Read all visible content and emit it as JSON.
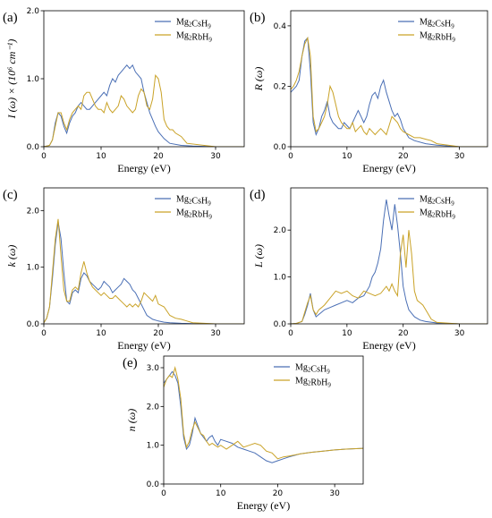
{
  "colors": {
    "cs": "#4a6fb5",
    "rb": "#c9a227"
  },
  "chart_data": [
    {
      "panel": "(a)",
      "type": "line",
      "xlabel": "Energy (eV)",
      "ylabel_html": "I (ω) × (10⁶ cm⁻¹)",
      "ylabel": "I (ω) × (10^6 cm^-1)",
      "xlim": [
        0,
        35
      ],
      "ylim": [
        0,
        2.0
      ],
      "xticks": [
        0,
        10,
        20,
        30
      ],
      "yticks": [
        0,
        1.0,
        2.0
      ],
      "ytick_labels": [
        "0.0",
        "1.0",
        "2.0"
      ],
      "legend": [
        "Mg2CsH9",
        "Mg2RbH9"
      ],
      "legend_position": "top-right",
      "series": [
        {
          "name": "Mg2CsH9",
          "x": [
            0,
            1,
            1.5,
            2,
            2.5,
            3,
            3.5,
            4,
            4.5,
            5,
            5.5,
            6,
            6.5,
            7,
            7.5,
            8,
            8.5,
            9,
            9.5,
            10,
            10.5,
            11,
            11.5,
            12,
            12.5,
            13,
            13.5,
            14,
            14.5,
            15,
            15.5,
            16,
            16.5,
            17,
            17.5,
            18,
            18.5,
            19,
            19.5,
            20,
            21,
            22,
            24,
            26,
            30,
            35
          ],
          "y": [
            0,
            0.02,
            0.1,
            0.35,
            0.5,
            0.45,
            0.3,
            0.2,
            0.35,
            0.45,
            0.5,
            0.6,
            0.65,
            0.6,
            0.55,
            0.55,
            0.6,
            0.65,
            0.7,
            0.75,
            0.8,
            0.75,
            0.9,
            1.0,
            0.95,
            1.05,
            1.1,
            1.15,
            1.2,
            1.15,
            1.2,
            1.1,
            1.05,
            1.0,
            0.8,
            0.65,
            0.5,
            0.4,
            0.3,
            0.22,
            0.12,
            0.05,
            0.02,
            0.01,
            0,
            0
          ]
        },
        {
          "name": "Mg2RbH9",
          "x": [
            0,
            1,
            1.5,
            2,
            2.5,
            3,
            3.5,
            4,
            4.5,
            5,
            5.5,
            6,
            6.5,
            7,
            7.5,
            8,
            8.5,
            9,
            9.5,
            10,
            10.5,
            11,
            11.5,
            12,
            12.5,
            13,
            13.5,
            14,
            14.5,
            15,
            15.5,
            16,
            16.5,
            17,
            17.5,
            18,
            18.5,
            19,
            19.5,
            20,
            20.5,
            21,
            21.5,
            22,
            22.5,
            23,
            24,
            25,
            30,
            35
          ],
          "y": [
            0,
            0.02,
            0.1,
            0.3,
            0.5,
            0.5,
            0.35,
            0.25,
            0.4,
            0.5,
            0.55,
            0.6,
            0.55,
            0.75,
            0.8,
            0.8,
            0.7,
            0.6,
            0.55,
            0.55,
            0.5,
            0.65,
            0.55,
            0.5,
            0.55,
            0.6,
            0.75,
            0.7,
            0.6,
            0.55,
            0.5,
            0.55,
            0.75,
            0.85,
            0.8,
            0.6,
            0.55,
            0.7,
            1.05,
            1.0,
            0.8,
            0.4,
            0.3,
            0.25,
            0.25,
            0.2,
            0.15,
            0.05,
            0,
            0
          ]
        }
      ]
    },
    {
      "panel": "(b)",
      "type": "line",
      "xlabel": "Energy (eV)",
      "ylabel": "R (ω)",
      "xlim": [
        0,
        35
      ],
      "ylim": [
        0,
        0.45
      ],
      "xticks": [
        0,
        10,
        20,
        30
      ],
      "yticks": [
        0,
        0.2,
        0.4
      ],
      "ytick_labels": [
        "0.0",
        "0.2",
        "0.4"
      ],
      "legend": [
        "Mg2CsH9",
        "Mg2RbH9"
      ],
      "legend_position": "top-right",
      "series": [
        {
          "name": "Mg2CsH9",
          "x": [
            0,
            0.5,
            1,
            1.5,
            2,
            2.5,
            3,
            3.5,
            4,
            4.5,
            5,
            5.5,
            6,
            6.5,
            7,
            7.5,
            8,
            8.5,
            9,
            9.5,
            10,
            10.5,
            11,
            11.5,
            12,
            12.5,
            13,
            13.5,
            14,
            14.5,
            15,
            15.5,
            16,
            16.5,
            17,
            17.5,
            18,
            18.5,
            19,
            19.5,
            20,
            21,
            22,
            24,
            26,
            30,
            35
          ],
          "y": [
            0.18,
            0.19,
            0.2,
            0.22,
            0.3,
            0.35,
            0.36,
            0.25,
            0.08,
            0.04,
            0.06,
            0.1,
            0.12,
            0.15,
            0.1,
            0.08,
            0.07,
            0.06,
            0.06,
            0.08,
            0.07,
            0.06,
            0.08,
            0.1,
            0.12,
            0.1,
            0.08,
            0.1,
            0.14,
            0.17,
            0.18,
            0.16,
            0.2,
            0.22,
            0.18,
            0.15,
            0.12,
            0.1,
            0.11,
            0.09,
            0.06,
            0.03,
            0.02,
            0.01,
            0.005,
            0,
            0
          ]
        },
        {
          "name": "Mg2RbH9",
          "x": [
            0,
            0.5,
            1,
            1.5,
            2,
            2.5,
            3,
            3.5,
            4,
            4.5,
            5,
            5.5,
            6,
            6.5,
            7,
            7.5,
            8,
            8.5,
            9,
            9.5,
            10,
            10.5,
            11,
            11.5,
            12,
            12.5,
            13,
            13.5,
            14,
            14.5,
            15,
            15.5,
            16,
            16.5,
            17,
            17.5,
            18,
            18.5,
            19,
            19.5,
            20,
            21,
            22,
            23,
            24,
            25,
            26,
            28,
            30,
            35
          ],
          "y": [
            0.19,
            0.2,
            0.22,
            0.25,
            0.3,
            0.34,
            0.36,
            0.3,
            0.1,
            0.05,
            0.06,
            0.08,
            0.1,
            0.14,
            0.2,
            0.18,
            0.14,
            0.1,
            0.08,
            0.07,
            0.06,
            0.06,
            0.08,
            0.05,
            0.06,
            0.07,
            0.05,
            0.04,
            0.06,
            0.05,
            0.04,
            0.05,
            0.06,
            0.05,
            0.04,
            0.07,
            0.1,
            0.09,
            0.08,
            0.06,
            0.05,
            0.04,
            0.03,
            0.03,
            0.025,
            0.02,
            0.01,
            0.005,
            0,
            0
          ]
        }
      ]
    },
    {
      "panel": "(c)",
      "type": "line",
      "xlabel": "Energy (eV)",
      "ylabel": "k (ω)",
      "xlim": [
        0,
        35
      ],
      "ylim": [
        0,
        2.4
      ],
      "xticks": [
        0,
        10,
        20,
        30
      ],
      "yticks": [
        0,
        1.0,
        2.0
      ],
      "ytick_labels": [
        "0.0",
        "1.0",
        "2.0"
      ],
      "legend": [
        "Mg2CsH9",
        "Mg2RbH9"
      ],
      "legend_position": "top-right",
      "series": [
        {
          "name": "Mg2CsH9",
          "x": [
            0,
            0.5,
            1,
            1.5,
            2,
            2.5,
            3,
            3.5,
            4,
            4.5,
            5,
            5.5,
            6,
            6.5,
            7,
            7.5,
            8,
            8.5,
            9,
            9.5,
            10,
            10.5,
            11,
            11.5,
            12,
            12.5,
            13,
            13.5,
            14,
            14.5,
            15,
            15.5,
            16,
            16.5,
            17,
            17.5,
            18,
            19,
            20,
            21,
            22,
            24,
            26,
            30,
            35
          ],
          "y": [
            0.02,
            0.1,
            0.3,
            0.8,
            1.4,
            1.8,
            1.5,
            0.9,
            0.4,
            0.35,
            0.55,
            0.6,
            0.55,
            0.8,
            0.9,
            0.85,
            0.75,
            0.7,
            0.65,
            0.6,
            0.65,
            0.75,
            0.7,
            0.65,
            0.55,
            0.6,
            0.65,
            0.7,
            0.8,
            0.75,
            0.7,
            0.6,
            0.55,
            0.45,
            0.35,
            0.25,
            0.15,
            0.08,
            0.05,
            0.03,
            0.02,
            0.01,
            0.005,
            0,
            0
          ]
        },
        {
          "name": "Mg2RbH9",
          "x": [
            0,
            0.5,
            1,
            1.5,
            2,
            2.5,
            3,
            3.5,
            4,
            4.5,
            5,
            5.5,
            6,
            6.5,
            7,
            7.5,
            8,
            8.5,
            9,
            9.5,
            10,
            10.5,
            11,
            11.5,
            12,
            12.5,
            13,
            13.5,
            14,
            14.5,
            15,
            15.5,
            16,
            16.5,
            17,
            17.5,
            18,
            18.5,
            19,
            19.5,
            20,
            21,
            22,
            23,
            24,
            25,
            26,
            30,
            35
          ],
          "y": [
            0.02,
            0.1,
            0.3,
            0.9,
            1.5,
            1.85,
            1.2,
            0.6,
            0.4,
            0.4,
            0.6,
            0.65,
            0.6,
            0.9,
            1.1,
            0.9,
            0.75,
            0.65,
            0.6,
            0.55,
            0.5,
            0.55,
            0.5,
            0.45,
            0.45,
            0.5,
            0.45,
            0.4,
            0.35,
            0.3,
            0.35,
            0.3,
            0.35,
            0.3,
            0.4,
            0.55,
            0.5,
            0.45,
            0.4,
            0.5,
            0.35,
            0.3,
            0.15,
            0.1,
            0.08,
            0.05,
            0.02,
            0,
            0
          ]
        }
      ]
    },
    {
      "panel": "(d)",
      "type": "line",
      "xlabel": "Energy (eV)",
      "ylabel": "L (ω)",
      "xlim": [
        0,
        35
      ],
      "ylim": [
        0,
        2.9
      ],
      "xticks": [
        0,
        10,
        20,
        30
      ],
      "yticks": [
        0,
        1.0,
        2.0
      ],
      "ytick_labels": [
        "0.0",
        "1.0",
        "2.0"
      ],
      "legend": [
        "Mg2CsH9",
        "Mg2RbH9"
      ],
      "legend_position": "top-right",
      "series": [
        {
          "name": "Mg2CsH9",
          "x": [
            0,
            1,
            2,
            2.5,
            3,
            3.5,
            4,
            4.5,
            5,
            5.5,
            6,
            7,
            8,
            9,
            10,
            11,
            12,
            13,
            14,
            14.5,
            15,
            15.5,
            16,
            16.5,
            17,
            17.5,
            18,
            18.5,
            19,
            19.5,
            20,
            20.5,
            21,
            22,
            23,
            24,
            26,
            30,
            35
          ],
          "y": [
            0,
            0.01,
            0.05,
            0.2,
            0.4,
            0.65,
            0.3,
            0.15,
            0.2,
            0.25,
            0.3,
            0.35,
            0.4,
            0.45,
            0.5,
            0.45,
            0.55,
            0.6,
            0.8,
            1.0,
            1.1,
            1.3,
            1.6,
            2.2,
            2.65,
            2.3,
            2.0,
            2.55,
            2.1,
            1.5,
            0.8,
            0.5,
            0.3,
            0.15,
            0.08,
            0.05,
            0.02,
            0,
            0
          ]
        },
        {
          "name": "Mg2RbH9",
          "x": [
            0,
            1,
            2,
            2.5,
            3,
            3.5,
            4,
            4.5,
            5,
            5.5,
            6,
            7,
            8,
            9,
            10,
            11,
            12,
            13,
            14,
            15,
            16,
            17,
            17.5,
            18,
            18.5,
            19,
            19.5,
            20,
            20.5,
            21,
            21.5,
            22,
            22.5,
            23,
            23.5,
            24,
            25,
            26,
            30,
            35
          ],
          "y": [
            0,
            0.01,
            0.05,
            0.25,
            0.45,
            0.6,
            0.3,
            0.2,
            0.3,
            0.35,
            0.4,
            0.55,
            0.7,
            0.65,
            0.7,
            0.6,
            0.55,
            0.7,
            0.65,
            0.6,
            0.65,
            0.8,
            0.7,
            0.85,
            0.7,
            0.6,
            1.5,
            1.9,
            1.2,
            2.0,
            1.5,
            0.7,
            0.5,
            0.45,
            0.4,
            0.3,
            0.1,
            0.03,
            0,
            0
          ]
        }
      ]
    },
    {
      "panel": "(e)",
      "type": "line",
      "xlabel": "Energy (eV)",
      "ylabel": "n (ω)",
      "xlim": [
        0,
        35
      ],
      "ylim": [
        0,
        3.3
      ],
      "xticks": [
        0,
        10,
        20,
        30
      ],
      "yticks": [
        0,
        1.0,
        2.0,
        3.0
      ],
      "ytick_labels": [
        "0.0",
        "1.0",
        "2.0",
        "3.0"
      ],
      "legend": [
        "Mg2CsH9",
        "Mg2RbH9"
      ],
      "legend_position": "top-right",
      "series": [
        {
          "name": "Mg2CsH9",
          "x": [
            0,
            0.5,
            1,
            1.5,
            2,
            2.5,
            3,
            3.5,
            4,
            4.5,
            5,
            5.5,
            6,
            6.5,
            7,
            7.5,
            8,
            8.5,
            9,
            9.5,
            10,
            11,
            12,
            13,
            14,
            15,
            16,
            17,
            18,
            19,
            20,
            21,
            22,
            24,
            26,
            28,
            30,
            32,
            35
          ],
          "y": [
            2.6,
            2.7,
            2.8,
            2.9,
            2.8,
            2.6,
            2.0,
            1.2,
            0.9,
            1.0,
            1.3,
            1.7,
            1.5,
            1.3,
            1.2,
            1.1,
            1.2,
            1.25,
            1.1,
            1.0,
            1.15,
            1.1,
            1.05,
            0.95,
            0.9,
            0.85,
            0.8,
            0.7,
            0.6,
            0.55,
            0.6,
            0.65,
            0.7,
            0.78,
            0.82,
            0.85,
            0.88,
            0.9,
            0.92
          ]
        },
        {
          "name": "Mg2RbH9",
          "x": [
            0,
            0.5,
            1,
            1.5,
            2,
            2.5,
            3,
            3.5,
            4,
            4.5,
            5,
            5.5,
            6,
            6.5,
            7,
            7.5,
            8,
            8.5,
            9,
            9.5,
            10,
            11,
            12,
            13,
            14,
            15,
            16,
            17,
            18,
            19,
            20,
            21,
            22,
            24,
            26,
            28,
            30,
            32,
            35
          ],
          "y": [
            2.5,
            2.7,
            2.8,
            2.75,
            3.0,
            2.7,
            2.2,
            1.3,
            0.95,
            1.1,
            1.4,
            1.6,
            1.45,
            1.3,
            1.25,
            1.1,
            1.0,
            1.05,
            1.0,
            0.95,
            1.0,
            0.9,
            1.0,
            1.1,
            0.95,
            1.0,
            1.05,
            1.0,
            0.85,
            0.8,
            0.65,
            0.7,
            0.72,
            0.78,
            0.82,
            0.85,
            0.88,
            0.9,
            0.92
          ]
        }
      ]
    }
  ]
}
